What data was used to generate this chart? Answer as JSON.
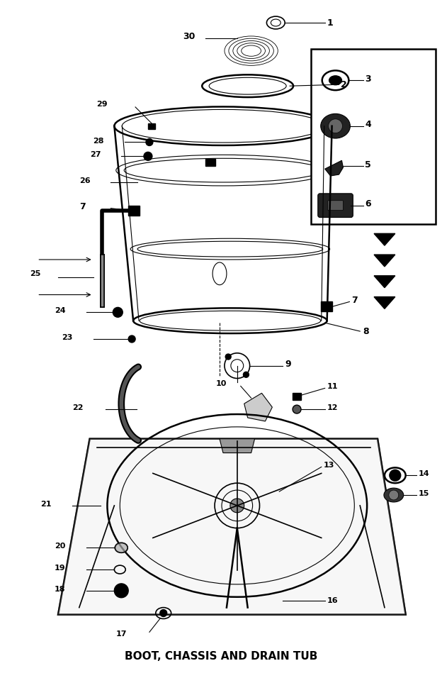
{
  "title": "BOOT, CHASSIS AND DRAIN TUB",
  "bg_color": "#ffffff",
  "fig_width": 6.24,
  "fig_height": 9.56
}
